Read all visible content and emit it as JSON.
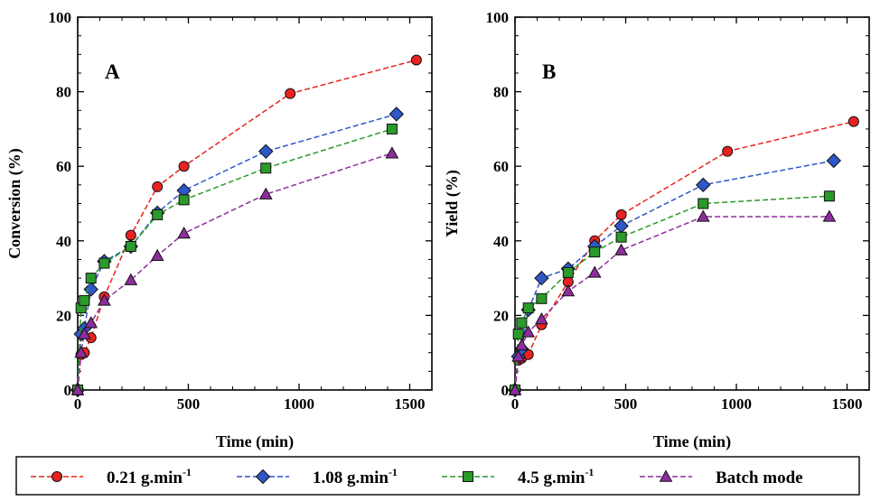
{
  "chart_data": [
    {
      "type": "line",
      "panel_label": "A",
      "xlabel": "Time (min)",
      "ylabel": "Conversion (%)",
      "xlim": [
        0,
        1600
      ],
      "ylim": [
        0,
        100
      ],
      "xticks": [
        "0",
        "500",
        "1000",
        "1500"
      ],
      "yticks": [
        "0",
        "20",
        "40",
        "60",
        "80",
        "100"
      ],
      "grid": false,
      "series": [
        {
          "name": "0.21 g.min",
          "color": "#e8231f",
          "marker": "circle",
          "x": [
            0,
            15,
            30,
            60,
            120,
            240,
            360,
            480,
            960,
            1530
          ],
          "y": [
            0,
            9.5,
            10,
            14,
            25,
            41.5,
            54.5,
            60,
            79.5,
            88.5
          ]
        },
        {
          "name": "1.08 g.min",
          "color": "#2f57c8",
          "marker": "diamond",
          "x": [
            0,
            15,
            30,
            60,
            120,
            240,
            360,
            480,
            850,
            1440
          ],
          "y": [
            0,
            15,
            16.5,
            27,
            34.5,
            38.5,
            47.5,
            53.5,
            64,
            74
          ]
        },
        {
          "name": "4.5 g.min",
          "color": "#2a9a2a",
          "marker": "square",
          "x": [
            0,
            15,
            30,
            60,
            120,
            240,
            360,
            480,
            850,
            1420
          ],
          "y": [
            0,
            22,
            24,
            30,
            34,
            38.5,
            47,
            51,
            59.5,
            70
          ]
        },
        {
          "name": "Batch mode",
          "color": "#8e2d9e",
          "marker": "triangle",
          "x": [
            0,
            15,
            30,
            60,
            120,
            240,
            360,
            480,
            850,
            1420
          ],
          "y": [
            0,
            10,
            15,
            18,
            24,
            29.5,
            36,
            42,
            52.5,
            63.5
          ]
        }
      ]
    },
    {
      "type": "line",
      "panel_label": "B",
      "xlabel": "Time (min)",
      "ylabel": "Yield (%)",
      "xlim": [
        0,
        1600
      ],
      "ylim": [
        0,
        100
      ],
      "xticks": [
        "0",
        "500",
        "1000",
        "1500"
      ],
      "yticks": [
        "0",
        "20",
        "40",
        "60",
        "80",
        "100"
      ],
      "grid": false,
      "series": [
        {
          "name": "0.21 g.min",
          "color": "#e8231f",
          "marker": "circle",
          "x": [
            0,
            15,
            30,
            60,
            120,
            240,
            360,
            480,
            960,
            1530
          ],
          "y": [
            0,
            8,
            8.5,
            9.5,
            17.5,
            29,
            40,
            47,
            64,
            72
          ]
        },
        {
          "name": "1.08 g.min",
          "color": "#2f57c8",
          "marker": "diamond",
          "x": [
            0,
            15,
            30,
            60,
            120,
            240,
            360,
            480,
            850,
            1440
          ],
          "y": [
            0,
            9,
            11,
            21.5,
            30,
            32.5,
            38.5,
            44,
            55,
            61.5
          ]
        },
        {
          "name": "4.5 g.min",
          "color": "#2a9a2a",
          "marker": "square",
          "x": [
            0,
            15,
            30,
            60,
            120,
            240,
            360,
            480,
            850,
            1420
          ],
          "y": [
            0,
            15,
            18,
            22,
            24.5,
            31.5,
            37,
            41,
            50,
            52
          ]
        },
        {
          "name": "Batch mode",
          "color": "#8e2d9e",
          "marker": "triangle",
          "x": [
            0,
            15,
            30,
            60,
            120,
            240,
            360,
            480,
            850,
            1420
          ],
          "y": [
            0,
            9,
            12,
            15.5,
            19,
            26.5,
            31.5,
            37.5,
            46.5,
            46.5
          ]
        }
      ]
    }
  ],
  "legend": {
    "placement": "bottom",
    "items": [
      {
        "label": "0.21 g.min",
        "sup": "-1",
        "color": "#e8231f",
        "marker": "circle"
      },
      {
        "label": "1.08 g.min",
        "sup": "-1",
        "color": "#2f57c8",
        "marker": "diamond"
      },
      {
        "label": "4.5 g.min",
        "sup": "-1",
        "color": "#2a9a2a",
        "marker": "square"
      },
      {
        "label": "Batch mode",
        "sup": "",
        "color": "#8e2d9e",
        "marker": "triangle"
      }
    ]
  }
}
